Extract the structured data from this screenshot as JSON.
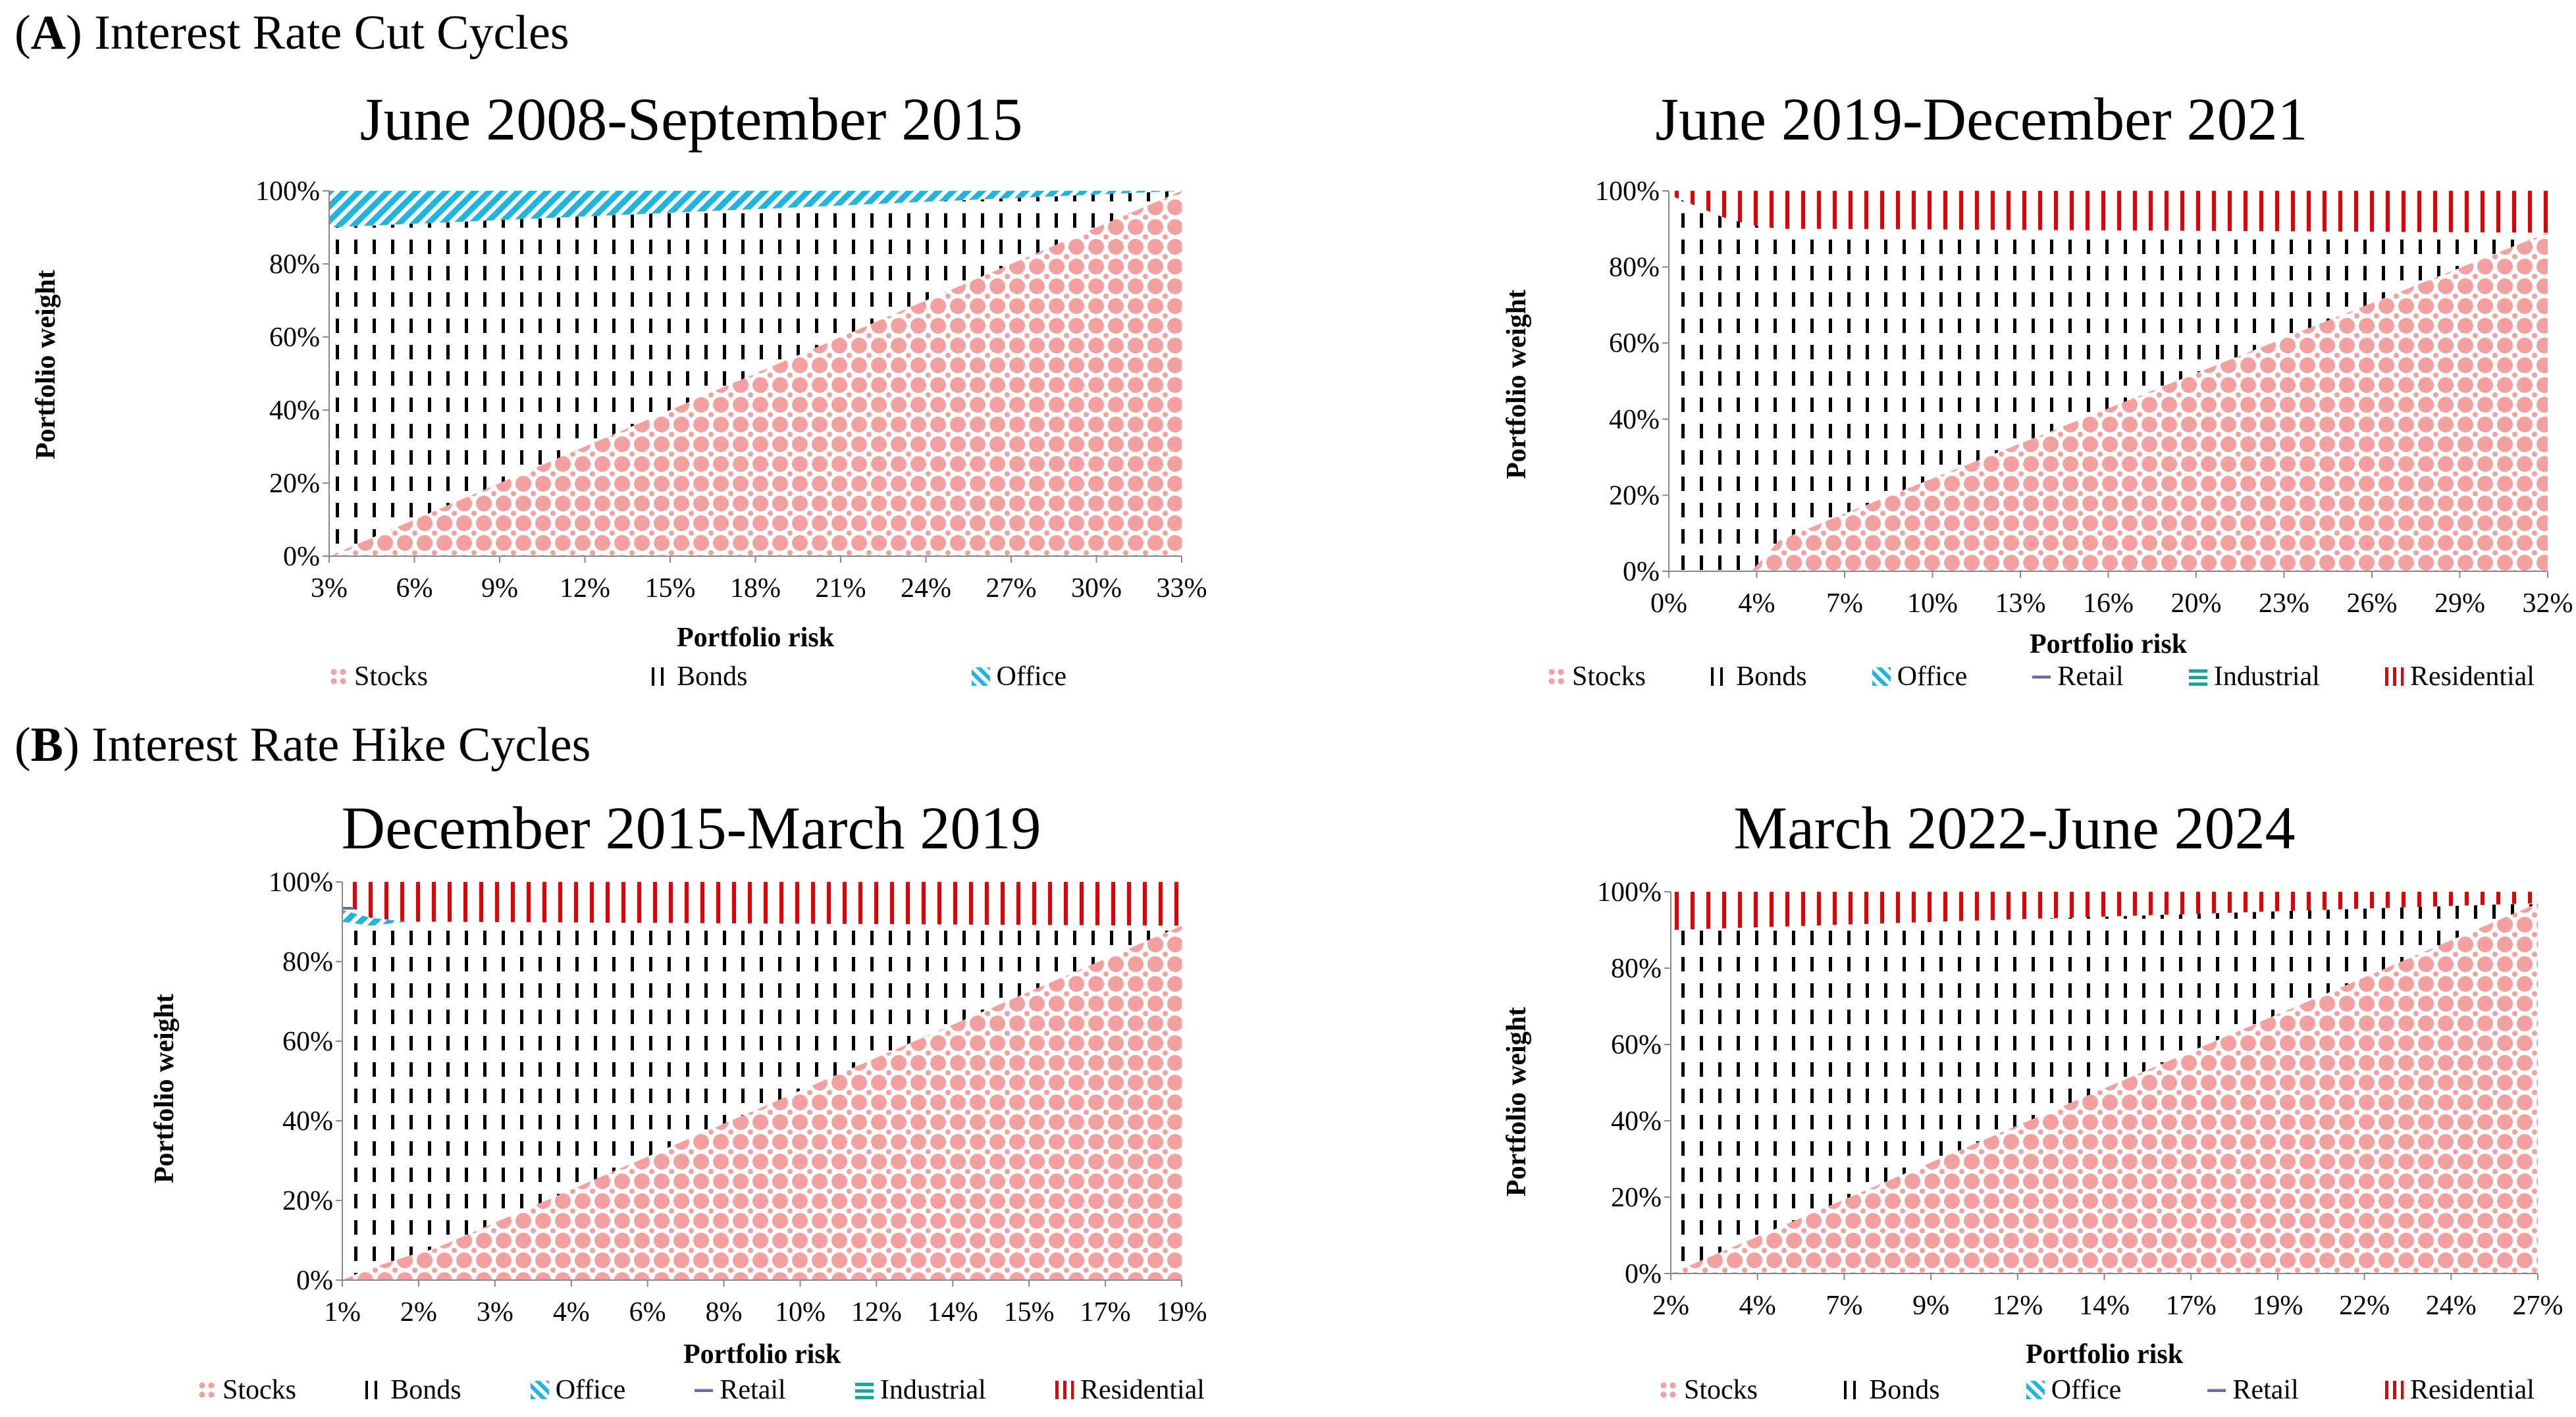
{
  "section_a": {
    "letter": "A",
    "title": "Interest Rate Cut Cycles"
  },
  "section_b": {
    "letter": "B",
    "title": "Interest Rate Hike Cycles"
  },
  "colors": {
    "Stocks": "#f4a0a0",
    "Bonds": "#000000",
    "Office": "#1fb5e0",
    "Retail": "#6f6a9a",
    "Industrial": "#1aa59a",
    "Residential": "#e60000"
  },
  "chart_data": [
    {
      "type": "area",
      "stacked": true,
      "title": "June 2008-September 2015",
      "xlabel": "Portfolio risk",
      "ylabel": "Portfolio weight",
      "x_ticks": [
        "3%",
        "6%",
        "9%",
        "12%",
        "15%",
        "18%",
        "21%",
        "24%",
        "27%",
        "30%",
        "33%"
      ],
      "y_ticks": [
        "0%",
        "20%",
        "40%",
        "60%",
        "80%",
        "100%"
      ],
      "x": [
        3,
        33
      ],
      "ylim": [
        0,
        100
      ],
      "legend": [
        "Stocks",
        "Bonds",
        "Office"
      ],
      "series": [
        {
          "name": "Stocks",
          "values": [
            0,
            100
          ]
        },
        {
          "name": "Bonds",
          "values": [
            90,
            0
          ]
        },
        {
          "name": "Office",
          "values": [
            10,
            0
          ]
        }
      ]
    },
    {
      "type": "area",
      "stacked": true,
      "title": "June 2019-December 2021",
      "xlabel": "Portfolio risk",
      "ylabel": "Portfolio weight",
      "x_ticks": [
        "0%",
        "4%",
        "7%",
        "10%",
        "13%",
        "16%",
        "20%",
        "23%",
        "26%",
        "29%",
        "32%"
      ],
      "y_ticks": [
        "0%",
        "20%",
        "40%",
        "60%",
        "80%",
        "100%"
      ],
      "x": [
        0,
        1,
        2,
        3,
        4,
        5,
        6,
        32
      ],
      "ylim": [
        0,
        100
      ],
      "legend": [
        "Stocks",
        "Bonds",
        "Office",
        "Retail",
        "Industrial",
        "Residential"
      ],
      "series": [
        {
          "name": "Stocks",
          "values": [
            0,
            0,
            0,
            0,
            8,
            11,
            14,
            89
          ]
        },
        {
          "name": "Bonds",
          "values": [
            99,
            96,
            93,
            91,
            82,
            79,
            76,
            0
          ]
        },
        {
          "name": "Office",
          "values": [
            0,
            0,
            0,
            0,
            0,
            0,
            0,
            0
          ]
        },
        {
          "name": "Retail",
          "values": [
            0,
            0,
            0,
            0,
            0,
            0,
            0,
            0
          ]
        },
        {
          "name": "Industrial",
          "values": [
            0,
            0,
            0,
            0,
            0,
            0,
            0,
            0
          ]
        },
        {
          "name": "Residential",
          "values": [
            1,
            4,
            7,
            9,
            10,
            10,
            10,
            11
          ]
        }
      ]
    },
    {
      "type": "area",
      "stacked": true,
      "title": "December 2015-March 2019",
      "xlabel": "Portfolio risk",
      "ylabel": "Portfolio weight",
      "x_ticks": [
        "1%",
        "2%",
        "3%",
        "4%",
        "6%",
        "8%",
        "10%",
        "12%",
        "14%",
        "15%",
        "17%",
        "19%"
      ],
      "y_ticks": [
        "0%",
        "20%",
        "40%",
        "60%",
        "80%",
        "100%"
      ],
      "x": [
        1.0,
        1.6,
        2.4,
        3.0,
        19.0
      ],
      "ylim": [
        0,
        100
      ],
      "legend": [
        "Stocks",
        "Bonds",
        "Office",
        "Retail",
        "Industrial",
        "Residential"
      ],
      "series": [
        {
          "name": "Stocks",
          "values": [
            0,
            3,
            6,
            8,
            89
          ]
        },
        {
          "name": "Bonds",
          "values": [
            90,
            86,
            84,
            82,
            0
          ]
        },
        {
          "name": "Office",
          "values": [
            3,
            2,
            0,
            0,
            0
          ]
        },
        {
          "name": "Retail",
          "values": [
            2,
            0,
            0,
            0,
            0
          ]
        },
        {
          "name": "Industrial",
          "values": [
            0,
            0,
            0,
            0,
            0
          ]
        },
        {
          "name": "Residential",
          "values": [
            5,
            9,
            10,
            10,
            11
          ]
        }
      ]
    },
    {
      "type": "area",
      "stacked": true,
      "title": "March 2022-June 2024",
      "xlabel": "Portfolio risk",
      "ylabel": "Portfolio weight",
      "x_ticks": [
        "2%",
        "4%",
        "7%",
        "9%",
        "12%",
        "14%",
        "17%",
        "19%",
        "22%",
        "24%",
        "27%"
      ],
      "y_ticks": [
        "0%",
        "20%",
        "40%",
        "60%",
        "80%",
        "100%"
      ],
      "x": [
        2,
        27
      ],
      "ylim": [
        0,
        100
      ],
      "legend": [
        "Stocks",
        "Bonds",
        "Office",
        "Retail",
        "Residential"
      ],
      "series": [
        {
          "name": "Stocks",
          "values": [
            0,
            97
          ]
        },
        {
          "name": "Bonds",
          "values": [
            90,
            0
          ]
        },
        {
          "name": "Office",
          "values": [
            0,
            0
          ]
        },
        {
          "name": "Retail",
          "values": [
            0,
            0
          ]
        },
        {
          "name": "Residential",
          "values": [
            10,
            3
          ]
        }
      ]
    }
  ]
}
